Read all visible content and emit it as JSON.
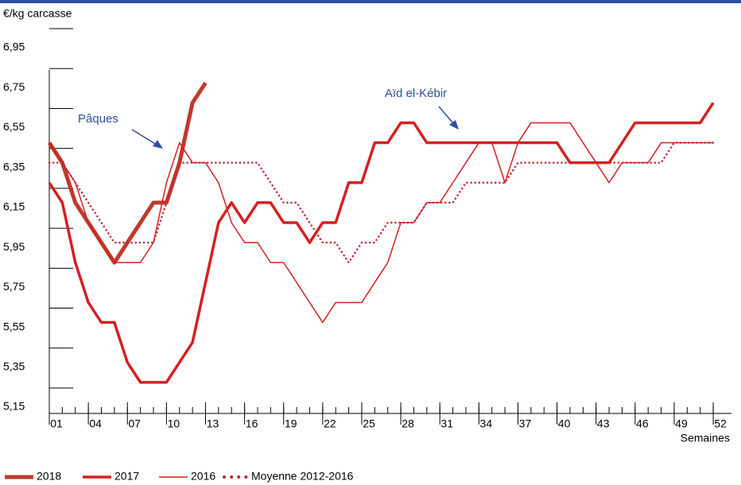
{
  "chart_data": {
    "type": "line",
    "y_label": "€/kg carcasse",
    "x_label": "Semaines",
    "x": [
      1,
      2,
      3,
      4,
      5,
      6,
      7,
      8,
      9,
      10,
      11,
      12,
      13,
      14,
      15,
      16,
      17,
      18,
      19,
      20,
      21,
      22,
      23,
      24,
      25,
      26,
      27,
      28,
      29,
      30,
      31,
      32,
      33,
      34,
      35,
      36,
      37,
      38,
      39,
      40,
      41,
      42,
      43,
      44,
      45,
      46,
      47,
      48,
      49,
      50,
      51,
      52
    ],
    "xlim": [
      1,
      53.4
    ],
    "xticks": [
      {
        "value": 1,
        "label": "01"
      },
      {
        "value": 4,
        "label": "04"
      },
      {
        "value": 7,
        "label": "07"
      },
      10,
      13,
      16,
      19,
      22,
      25,
      28,
      31,
      34,
      37,
      40,
      43,
      46,
      49,
      52
    ],
    "ylim": [
      5.15,
      6.95
    ],
    "yticks": [
      {
        "value": 5.15,
        "label": "5,15"
      },
      {
        "value": 5.35,
        "label": "5,35"
      },
      {
        "value": 5.55,
        "label": "5,55"
      },
      {
        "value": 5.75,
        "label": "5,75"
      },
      {
        "value": 5.95,
        "label": "5,95"
      },
      {
        "value": 6.15,
        "label": "6,15"
      },
      {
        "value": 6.35,
        "label": "6,35"
      },
      {
        "value": 6.55,
        "label": "6,55"
      },
      {
        "value": 6.75,
        "label": "6,75"
      },
      {
        "value": 6.95,
        "label": "6,95"
      }
    ],
    "series": [
      {
        "name": "2018",
        "color": "#c0392b",
        "width": 5,
        "style": "solid",
        "values": [
          6.45,
          6.35,
          6.15,
          6.05,
          5.95,
          5.85,
          5.95,
          6.05,
          6.15,
          6.15,
          6.35,
          6.65,
          6.75,
          null,
          null,
          null,
          null,
          null,
          null,
          null,
          null,
          null,
          null,
          null,
          null,
          null,
          null,
          null,
          null,
          null,
          null,
          null,
          null,
          null,
          null,
          null,
          null,
          null,
          null,
          null,
          null,
          null,
          null,
          null,
          null,
          null,
          null,
          null,
          null,
          null,
          null,
          null
        ]
      },
      {
        "name": "2017",
        "color": "#d42020",
        "width": 3.5,
        "style": "solid",
        "values": [
          6.25,
          6.15,
          5.85,
          5.65,
          5.55,
          5.55,
          5.35,
          5.25,
          5.25,
          5.25,
          5.35,
          5.45,
          5.75,
          6.05,
          6.15,
          6.05,
          6.15,
          6.15,
          6.05,
          6.05,
          5.95,
          6.05,
          6.05,
          6.25,
          6.25,
          6.45,
          6.45,
          6.55,
          6.55,
          6.45,
          6.45,
          6.45,
          6.45,
          6.45,
          6.45,
          6.45,
          6.45,
          6.45,
          6.45,
          6.45,
          6.35,
          6.35,
          6.35,
          6.35,
          6.45,
          6.55,
          6.55,
          6.55,
          6.55,
          6.55,
          6.55,
          6.65
        ]
      },
      {
        "name": "2016",
        "color": "#d42020",
        "width": 1.5,
        "style": "solid",
        "values": [
          6.45,
          6.35,
          6.25,
          6.05,
          5.95,
          5.85,
          5.85,
          5.85,
          5.95,
          6.25,
          6.45,
          6.35,
          6.35,
          6.25,
          6.05,
          5.95,
          5.95,
          5.85,
          5.85,
          5.75,
          5.65,
          5.55,
          5.65,
          5.65,
          5.65,
          5.75,
          5.85,
          6.05,
          6.05,
          6.15,
          6.15,
          6.25,
          6.35,
          6.45,
          6.45,
          6.25,
          6.45,
          6.55,
          6.55,
          6.55,
          6.55,
          6.45,
          6.35,
          6.25,
          6.35,
          6.35,
          6.35,
          6.45,
          6.45,
          6.45,
          6.45,
          6.45
        ]
      },
      {
        "name": "Moyenne 2012-2016",
        "color": "#c0283a",
        "width": 2.5,
        "style": "dotted",
        "values": [
          6.35,
          6.35,
          6.25,
          6.15,
          6.05,
          5.95,
          5.95,
          5.95,
          5.95,
          6.15,
          6.35,
          6.35,
          6.35,
          6.35,
          6.35,
          6.35,
          6.35,
          6.25,
          6.15,
          6.15,
          6.05,
          5.95,
          5.95,
          5.85,
          5.95,
          5.95,
          6.05,
          6.05,
          6.05,
          6.15,
          6.15,
          6.15,
          6.25,
          6.25,
          6.25,
          6.25,
          6.35,
          6.35,
          6.35,
          6.35,
          6.35,
          6.35,
          6.35,
          6.35,
          6.35,
          6.35,
          6.35,
          6.35,
          6.45,
          6.45,
          6.45,
          6.45
        ]
      }
    ],
    "annotations": [
      "Pâques",
      "Aïd el-Kébir"
    ]
  }
}
